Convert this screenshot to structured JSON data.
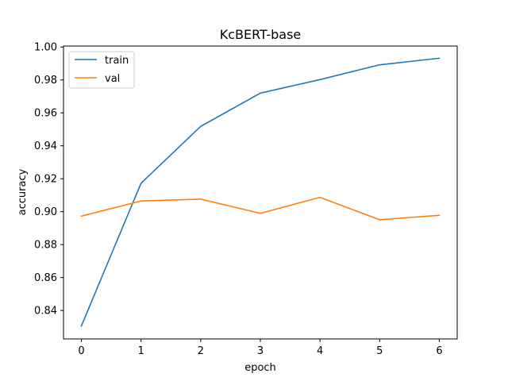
{
  "chart_data": {
    "type": "line",
    "title": "KcBERT-base",
    "xlabel": "epoch",
    "ylabel": "accuracy",
    "x": [
      0,
      1,
      2,
      3,
      4,
      5,
      6
    ],
    "xticks": [
      "0",
      "1",
      "2",
      "3",
      "4",
      "5",
      "6"
    ],
    "yticks": [
      "0.84",
      "0.86",
      "0.88",
      "0.90",
      "0.92",
      "0.94",
      "0.96",
      "0.98",
      "1.00"
    ],
    "ytick_values": [
      0.84,
      0.86,
      0.88,
      0.9,
      0.92,
      0.94,
      0.96,
      0.98,
      1.0
    ],
    "xlim": [
      -0.3,
      6.3
    ],
    "ylim": [
      0.8227,
      1.0006
    ],
    "grid": false,
    "legend_position": "top-left",
    "series": [
      {
        "name": "train",
        "color": "#1f77b4",
        "values": [
          0.8306,
          0.9173,
          0.9518,
          0.972,
          0.9802,
          0.9892,
          0.9932
        ]
      },
      {
        "name": "val",
        "color": "#ff7f0e",
        "values": [
          0.8973,
          0.9065,
          0.9076,
          0.899,
          0.9087,
          0.8951,
          0.8978
        ]
      }
    ]
  }
}
